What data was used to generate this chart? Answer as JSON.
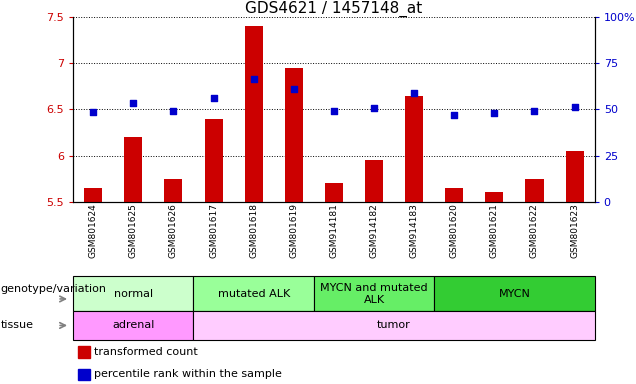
{
  "title": "GDS4621 / 1457148_at",
  "samples": [
    "GSM801624",
    "GSM801625",
    "GSM801626",
    "GSM801617",
    "GSM801618",
    "GSM801619",
    "GSM914181",
    "GSM914182",
    "GSM914183",
    "GSM801620",
    "GSM801621",
    "GSM801622",
    "GSM801623"
  ],
  "bar_values": [
    5.65,
    6.2,
    5.75,
    6.4,
    7.4,
    6.95,
    5.7,
    5.95,
    6.65,
    5.65,
    5.6,
    5.75,
    6.05
  ],
  "dot_values": [
    6.47,
    6.57,
    6.48,
    6.62,
    6.83,
    6.72,
    6.48,
    6.52,
    6.68,
    6.44,
    6.46,
    6.48,
    6.53
  ],
  "ylim_left": [
    5.5,
    7.5
  ],
  "ylim_right": [
    0,
    100
  ],
  "yticks_left": [
    5.5,
    6.0,
    6.5,
    7.0,
    7.5
  ],
  "yticks_right": [
    0,
    25,
    50,
    75,
    100
  ],
  "ytick_labels_left": [
    "5.5",
    "6",
    "6.5",
    "7",
    "7.5"
  ],
  "ytick_labels_right": [
    "0",
    "25",
    "50",
    "75",
    "100%"
  ],
  "bar_color": "#cc0000",
  "dot_color": "#0000cc",
  "bar_bottom": 5.5,
  "bar_width": 0.45,
  "dot_size": 18,
  "genotype_groups": [
    {
      "label": "normal",
      "start": 0,
      "end": 3,
      "color": "#ccffcc"
    },
    {
      "label": "mutated ALK",
      "start": 3,
      "end": 6,
      "color": "#99ff99"
    },
    {
      "label": "MYCN and mutated\nALK",
      "start": 6,
      "end": 9,
      "color": "#66ee66"
    },
    {
      "label": "MYCN",
      "start": 9,
      "end": 13,
      "color": "#33cc33"
    }
  ],
  "tissue_groups": [
    {
      "label": "adrenal",
      "start": 0,
      "end": 3,
      "color": "#ff99ff"
    },
    {
      "label": "tumor",
      "start": 3,
      "end": 13,
      "color": "#ffccff"
    }
  ],
  "genotype_label": "genotype/variation",
  "tissue_label": "tissue",
  "legend_items": [
    {
      "label": "transformed count",
      "color": "#cc0000"
    },
    {
      "label": "percentile rank within the sample",
      "color": "#0000cc"
    }
  ],
  "title_fontsize": 11,
  "tick_fontsize": 8,
  "sample_fontsize": 6.5,
  "annotation_fontsize": 8,
  "label_fontsize": 8
}
